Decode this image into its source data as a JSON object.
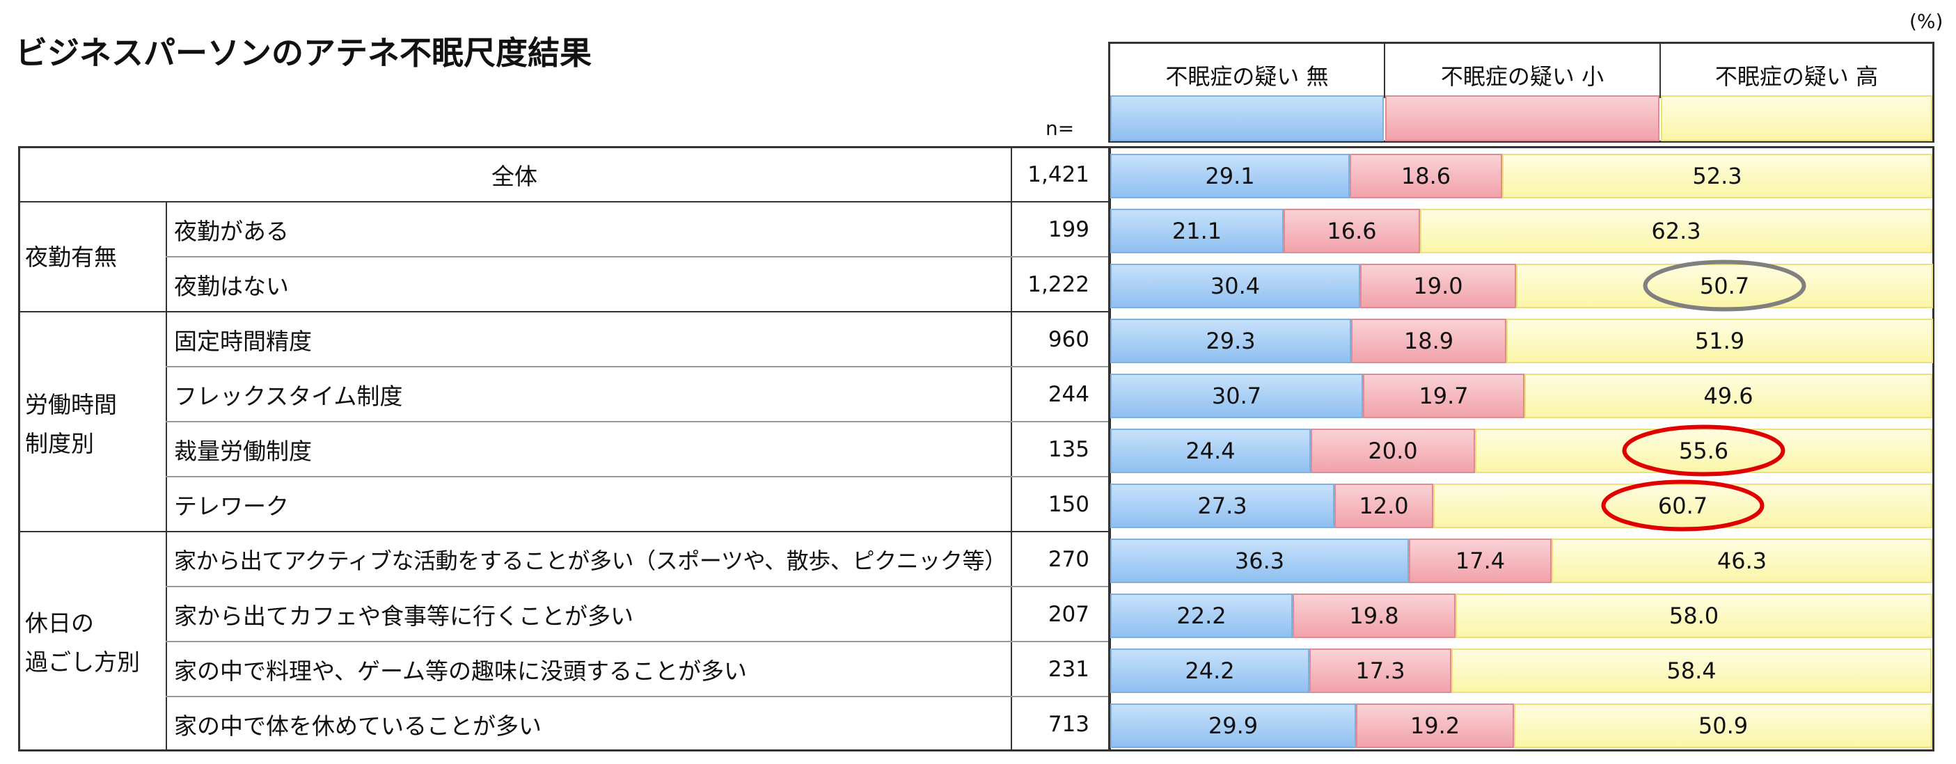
{
  "title": "ビジネスパーソンのアテネ不眠尺度結果",
  "unit_label": "(%)",
  "n_header": "n=",
  "colors": {
    "none": "#a9d0f5",
    "low": "#f5b3b9",
    "high": "#fcf8b8",
    "highlight_gray": "#808080",
    "highlight_red": "#e00000"
  },
  "groups": [
    "夜勤有無",
    "労働時間\n制度別",
    "休日の\n過ごし方別"
  ],
  "chart_data": {
    "type": "bar",
    "stacked": true,
    "orientation": "horizontal",
    "unit": "%",
    "legend": [
      "不眠症の疑い 無",
      "不眠症の疑い 小",
      "不眠症の疑い 高"
    ],
    "categories": [
      "全体",
      "夜勤がある",
      "夜勤はない",
      "固定時間精度",
      "フレックスタイム制度",
      "裁量労働制度",
      "テレワーク",
      "家から出てアクティブな活動をすることが多い（スポーツや、散歩、ピクニック等）",
      "家から出てカフェや食事等に行くことが多い",
      "家の中で料理や、ゲーム等の趣味に没頭することが多い",
      "家の中で体を休めていることが多い"
    ],
    "n": [
      "1,421",
      "199",
      "1,222",
      "960",
      "244",
      "135",
      "150",
      "270",
      "207",
      "231",
      "713"
    ],
    "series": [
      {
        "name": "不眠症の疑い 無",
        "values": [
          29.1,
          21.1,
          30.4,
          29.3,
          30.7,
          24.4,
          27.3,
          36.3,
          22.2,
          24.2,
          29.9
        ]
      },
      {
        "name": "不眠症の疑い 小",
        "values": [
          18.6,
          16.6,
          19.0,
          18.9,
          19.7,
          20.0,
          12.0,
          17.4,
          19.8,
          17.3,
          19.2
        ]
      },
      {
        "name": "不眠症の疑い 高",
        "values": [
          52.3,
          62.3,
          50.7,
          51.9,
          49.6,
          55.6,
          60.7,
          46.3,
          58.0,
          58.4,
          50.9
        ]
      }
    ],
    "highlights": [
      {
        "row": 2,
        "series": 2,
        "color": "gray"
      },
      {
        "row": 5,
        "series": 2,
        "color": "red"
      },
      {
        "row": 6,
        "series": 2,
        "color": "red"
      }
    ],
    "xlim": [
      0,
      100
    ]
  }
}
